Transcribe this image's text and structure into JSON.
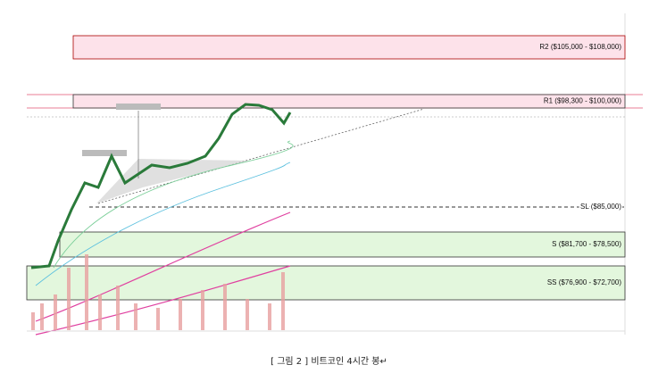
{
  "figure": {
    "zones": [
      {
        "label": "R2 ($105,000 - $108,000)"
      },
      {
        "label": "R1 ($98,300 - $100,000)"
      },
      {
        "label": "SL ($85,000)"
      },
      {
        "label": "S ($81,700 - $78,500)"
      },
      {
        "label": "SS ($76,900 - $72,700)"
      }
    ],
    "caption": "[ 그림 2 ] 비트코인 4시간 봉↵"
  }
}
